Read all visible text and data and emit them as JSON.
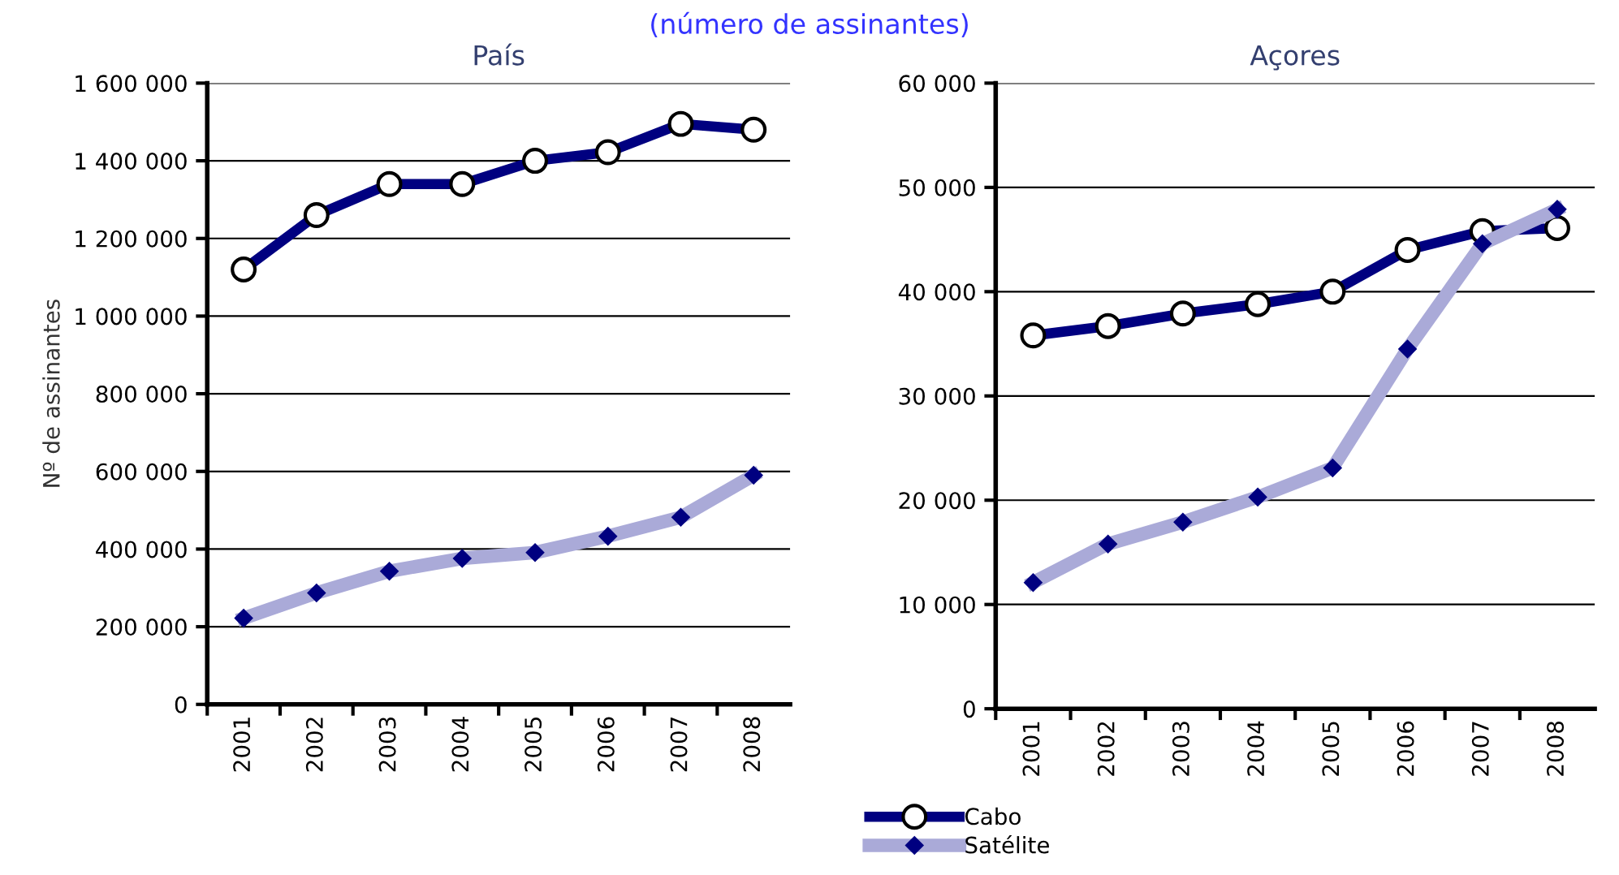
{
  "chart_data": [
    {
      "type": "line",
      "subtitle": "(número de assinantes)",
      "title": "País",
      "ylabel": "Nº de assinantes",
      "categories": [
        "2001",
        "2002",
        "2003",
        "2004",
        "2005",
        "2006",
        "2007",
        "2008"
      ],
      "ylim": [
        0,
        1600000
      ],
      "yticks": [
        {
          "value": 0,
          "label": "0"
        },
        {
          "value": 200000,
          "label": "200 000"
        },
        {
          "value": 400000,
          "label": "400 000"
        },
        {
          "value": 600000,
          "label": "600 000"
        },
        {
          "value": 800000,
          "label": "800 000"
        },
        {
          "value": 1000000,
          "label": "1 000 000"
        },
        {
          "value": 1200000,
          "label": "1 200 000"
        },
        {
          "value": 1400000,
          "label": "1 400 000"
        },
        {
          "value": 1600000,
          "label": "1 600 000"
        }
      ],
      "grid": "y",
      "series": [
        {
          "color": "#000080",
          "marker": "circle",
          "values": [
            1120000,
            1260000,
            1340000,
            1340000,
            1400000,
            1422000,
            1495000,
            1480000
          ]
        },
        {
          "color": "#aaaad8",
          "marker": "diamond",
          "values": [
            222000,
            287000,
            343000,
            376000,
            391000,
            433000,
            482000,
            590000
          ]
        }
      ]
    },
    {
      "type": "line",
      "title": "Açores",
      "categories": [
        "2001",
        "2002",
        "2003",
        "2004",
        "2005",
        "2006",
        "2007",
        "2008"
      ],
      "ylim": [
        0,
        60000
      ],
      "yticks": [
        {
          "value": 0,
          "label": "0"
        },
        {
          "value": 10000,
          "label": "10 000"
        },
        {
          "value": 20000,
          "label": "20 000"
        },
        {
          "value": 30000,
          "label": "30 000"
        },
        {
          "value": 40000,
          "label": "40 000"
        },
        {
          "value": 50000,
          "label": "50 000"
        },
        {
          "value": 60000,
          "label": "60 000"
        }
      ],
      "grid": "y",
      "legend": "bottom",
      "series": [
        {
          "name": "Cabo",
          "color": "#000080",
          "marker": "circle",
          "values": [
            35800,
            36700,
            37900,
            38800,
            40000,
            44000,
            45800,
            46100
          ]
        },
        {
          "name": "Satélite",
          "color": "#aaaad8",
          "marker": "diamond",
          "values": [
            12100,
            15800,
            17900,
            20300,
            23100,
            34500,
            44600,
            47900
          ]
        }
      ]
    }
  ]
}
